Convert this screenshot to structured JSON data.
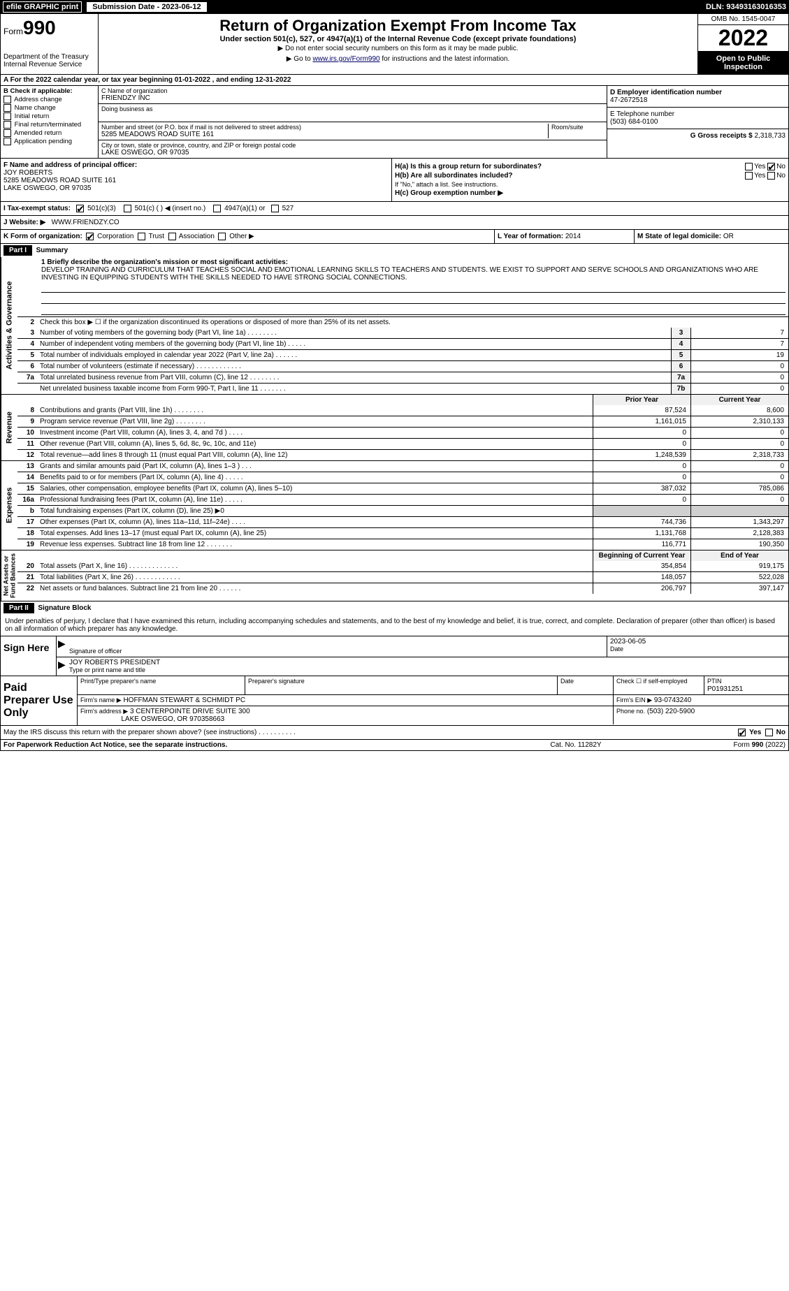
{
  "topbar": {
    "efile": "efile GRAPHIC print",
    "submission_label": "Submission Date - 2023-06-12",
    "dln": "DLN: 93493163016353"
  },
  "header": {
    "form_word": "Form",
    "form_no": "990",
    "dept": "Department of the Treasury\nInternal Revenue Service",
    "title": "Return of Organization Exempt From Income Tax",
    "subtitle": "Under section 501(c), 527, or 4947(a)(1) of the Internal Revenue Code (except private foundations)",
    "note": "▶ Do not enter social security numbers on this form as it may be made public.",
    "goto": "▶ Go to www.irs.gov/Form990 for instructions and the latest information.",
    "goto_link": "www.irs.gov/Form990",
    "omb": "OMB No. 1545-0047",
    "year": "2022",
    "open": "Open to Public Inspection"
  },
  "line_a": "A For the 2022 calendar year, or tax year beginning 01-01-2022     , and ending 12-31-2022",
  "block_b": {
    "label": "B Check if applicable:",
    "items": [
      "Address change",
      "Name change",
      "Initial return",
      "Final return/terminated",
      "Amended return",
      "Application pending"
    ]
  },
  "block_c": {
    "name_label": "C Name of organization",
    "name": "FRIENDZY INC",
    "dba_label": "Doing business as",
    "addr_label": "Number and street (or P.O. box if mail is not delivered to street address)",
    "room_label": "Room/suite",
    "addr": "5285 MEADOWS ROAD SUITE 161",
    "city_label": "City or town, state or province, country, and ZIP or foreign postal code",
    "city": "LAKE OSWEGO, OR  97035"
  },
  "block_d": {
    "label": "D Employer identification number",
    "value": "47-2672518"
  },
  "block_e": {
    "label": "E Telephone number",
    "value": "(503) 684-0100"
  },
  "block_g": {
    "label": "G Gross receipts $",
    "value": "2,318,733"
  },
  "block_f": {
    "label": "F Name and address of principal officer:",
    "name": "JOY ROBERTS",
    "addr1": "5285 MEADOWS ROAD SUITE 161",
    "addr2": "LAKE OSWEGO, OR  97035"
  },
  "block_h": {
    "a": "H(a)  Is this a group return for subordinates?",
    "a_yes": "Yes",
    "a_no": "No",
    "b": "H(b)  Are all subordinates included?",
    "b_note": "If \"No,\" attach a list. See instructions.",
    "c": "H(c)  Group exemption number ▶"
  },
  "block_i": {
    "label": "I  Tax-exempt status:",
    "opts": [
      "501(c)(3)",
      "501(c) (   ) ◀ (insert no.)",
      "4947(a)(1) or",
      "527"
    ]
  },
  "block_j": {
    "label": "J  Website: ▶",
    "value": "WWW.FRIENDZY.CO"
  },
  "block_k": {
    "label": "K Form of organization:",
    "opts": [
      "Corporation",
      "Trust",
      "Association",
      "Other ▶"
    ]
  },
  "block_l": {
    "label": "L Year of formation:",
    "value": "2014"
  },
  "block_m": {
    "label": "M State of legal domicile:",
    "value": "OR"
  },
  "part1": {
    "hdr": "Part I",
    "title": "Summary",
    "l1_label": "1  Briefly describe the organization's mission or most significant activities:",
    "l1_text": "DEVELOP TRAINING AND CURRICULUM THAT TEACHES SOCIAL AND EMOTIONAL LEARNING SKILLS TO TEACHERS AND STUDENTS. WE EXIST TO SUPPORT AND SERVE SCHOOLS AND ORGANIZATIONS WHO ARE INVESTING IN EQUIPPING STUDENTS WITH THE SKILLS NEEDED TO HAVE STRONG SOCIAL CONNECTIONS.",
    "l2": "Check this box ▶ ☐  if the organization discontinued its operations or disposed of more than 25% of its net assets.",
    "gov_rows": [
      {
        "n": "3",
        "d": "Number of voting members of the governing body (Part VI, line 1a)   .    .    .    .    .    .    .    .",
        "b": "3",
        "v": "7"
      },
      {
        "n": "4",
        "d": "Number of independent voting members of the governing body (Part VI, line 1b)   .    .    .    .    .",
        "b": "4",
        "v": "7"
      },
      {
        "n": "5",
        "d": "Total number of individuals employed in calendar year 2022 (Part V, line 2a)   .    .    .    .    .    .",
        "b": "5",
        "v": "19"
      },
      {
        "n": "6",
        "d": "Total number of volunteers (estimate if necessary)    .    .    .    .    .    .    .    .    .    .    .    .",
        "b": "6",
        "v": "0"
      },
      {
        "n": "7a",
        "d": "Total unrelated business revenue from Part VIII, column (C), line 12   .    .    .    .    .    .    .    .",
        "b": "7a",
        "v": "0"
      },
      {
        "n": "",
        "d": "Net unrelated business taxable income from Form 990-T, Part I, line 11   .    .    .    .    .    .    .",
        "b": "7b",
        "v": "0"
      }
    ],
    "col_hdr_prior": "Prior Year",
    "col_hdr_current": "Current Year",
    "rev_rows": [
      {
        "n": "8",
        "d": "Contributions and grants (Part VIII, line 1h)   .    .    .    .    .    .    .    .",
        "p": "87,524",
        "c": "8,600"
      },
      {
        "n": "9",
        "d": "Program service revenue (Part VIII, line 2g)   .    .    .    .    .    .    .    .",
        "p": "1,161,015",
        "c": "2,310,133"
      },
      {
        "n": "10",
        "d": "Investment income (Part VIII, column (A), lines 3, 4, and 7d )   .    .    .    .",
        "p": "0",
        "c": "0"
      },
      {
        "n": "11",
        "d": "Other revenue (Part VIII, column (A), lines 5, 6d, 8c, 9c, 10c, and 11e)",
        "p": "0",
        "c": "0"
      },
      {
        "n": "12",
        "d": "Total revenue—add lines 8 through 11 (must equal Part VIII, column (A), line 12)",
        "p": "1,248,539",
        "c": "2,318,733"
      }
    ],
    "exp_rows": [
      {
        "n": "13",
        "d": "Grants and similar amounts paid (Part IX, column (A), lines 1–3 )   .    .    .",
        "p": "0",
        "c": "0"
      },
      {
        "n": "14",
        "d": "Benefits paid to or for members (Part IX, column (A), line 4)   .    .    .    .    .",
        "p": "0",
        "c": "0"
      },
      {
        "n": "15",
        "d": "Salaries, other compensation, employee benefits (Part IX, column (A), lines 5–10)",
        "p": "387,032",
        "c": "785,086"
      },
      {
        "n": "16a",
        "d": "Professional fundraising fees (Part IX, column (A), line 11e)   .    .    .    .    .",
        "p": "0",
        "c": "0"
      },
      {
        "n": "b",
        "d": "Total fundraising expenses (Part IX, column (D), line 25) ▶0",
        "p": "",
        "c": "",
        "shade": true
      },
      {
        "n": "17",
        "d": "Other expenses (Part IX, column (A), lines 11a–11d, 11f–24e)   .    .    .    .",
        "p": "744,736",
        "c": "1,343,297"
      },
      {
        "n": "18",
        "d": "Total expenses. Add lines 13–17 (must equal Part IX, column (A), line 25)",
        "p": "1,131,768",
        "c": "2,128,383"
      },
      {
        "n": "19",
        "d": "Revenue less expenses. Subtract line 18 from line 12   .    .    .    .    .    .    .",
        "p": "116,771",
        "c": "190,350"
      }
    ],
    "na_hdr_prior": "Beginning of Current Year",
    "na_hdr_current": "End of Year",
    "na_rows": [
      {
        "n": "20",
        "d": "Total assets (Part X, line 16)   .    .    .    .    .    .    .    .    .    .    .    .    .",
        "p": "354,854",
        "c": "919,175"
      },
      {
        "n": "21",
        "d": "Total liabilities (Part X, line 26)   .    .    .    .    .    .    .    .    .    .    .    .",
        "p": "148,057",
        "c": "522,028"
      },
      {
        "n": "22",
        "d": "Net assets or fund balances. Subtract line 21 from line 20   .    .    .    .    .    .",
        "p": "206,797",
        "c": "397,147"
      }
    ],
    "vlabels": {
      "gov": "Activities & Governance",
      "rev": "Revenue",
      "exp": "Expenses",
      "na": "Net Assets or\nFund Balances"
    }
  },
  "part2": {
    "hdr": "Part II",
    "title": "Signature Block",
    "perjury": "Under penalties of perjury, I declare that I have examined this return, including accompanying schedules and statements, and to the best of my knowledge and belief, it is true, correct, and complete. Declaration of preparer (other than officer) is based on all information of which preparer has any knowledge.",
    "sign_here": "Sign Here",
    "sig_officer": "Signature of officer",
    "sig_date": "Date",
    "sig_date_val": "2023-06-05",
    "sig_name": "JOY ROBERTS  PRESIDENT",
    "sig_name_lbl": "Type or print name and title",
    "paid": "Paid Preparer Use Only",
    "p_name_lbl": "Print/Type preparer's name",
    "p_sig_lbl": "Preparer's signature",
    "p_date_lbl": "Date",
    "p_check": "Check ☐ if self-employed",
    "p_ptin_lbl": "PTIN",
    "p_ptin": "P01931251",
    "firm_name_lbl": "Firm's name    ▶",
    "firm_name": "HOFFMAN STEWART & SCHMIDT PC",
    "firm_ein_lbl": "Firm's EIN ▶",
    "firm_ein": "93-0743240",
    "firm_addr_lbl": "Firm's address ▶",
    "firm_addr1": "3 CENTERPOINTE DRIVE SUITE 300",
    "firm_addr2": "LAKE OSWEGO, OR  970358663",
    "firm_phone_lbl": "Phone no.",
    "firm_phone": "(503) 220-5900",
    "discuss": "May the IRS discuss this return with the preparer shown above? (see instructions)   .    .    .    .    .    .    .    .    .    .",
    "discuss_yes": "Yes",
    "discuss_no": "No"
  },
  "footer": {
    "f1": "For Paperwork Reduction Act Notice, see the separate instructions.",
    "f2": "Cat. No. 11282Y",
    "f3": "Form 990 (2022)"
  },
  "colors": {
    "black": "#000000",
    "white": "#ffffff",
    "shade": "#d0d0d0",
    "link": "#000066"
  }
}
